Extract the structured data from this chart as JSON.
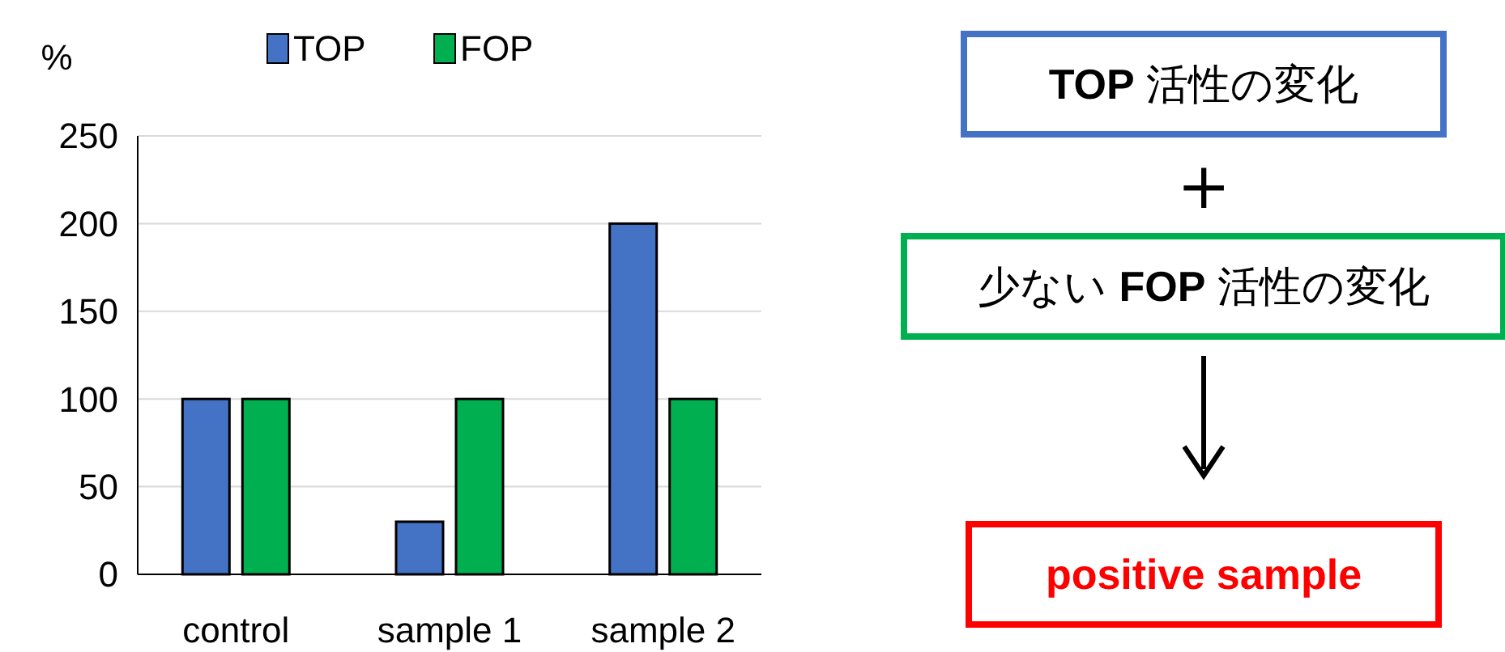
{
  "chart_data": [
    {
      "type": "bar",
      "ylabel": "%",
      "categories": [
        "control",
        "sample 1",
        "sample 2"
      ],
      "series": [
        {
          "name": "TOP",
          "color": "#4472c4",
          "values": [
            100,
            30,
            200
          ]
        },
        {
          "name": "FOP",
          "color": "#00b050",
          "values": [
            100,
            100,
            100
          ]
        }
      ],
      "ylim": [
        0,
        250
      ],
      "yticks": [
        0,
        50,
        100,
        150,
        200,
        250
      ],
      "grid": "y",
      "legend": "top"
    },
    {
      "type": "other",
      "annotations": [
        "TOP 活性の変化",
        "＋",
        "少ない FOP 活性の変化",
        "positive sample"
      ],
      "colors": [
        "#4472c4",
        null,
        "#00b050",
        "#ff0000"
      ]
    }
  ]
}
